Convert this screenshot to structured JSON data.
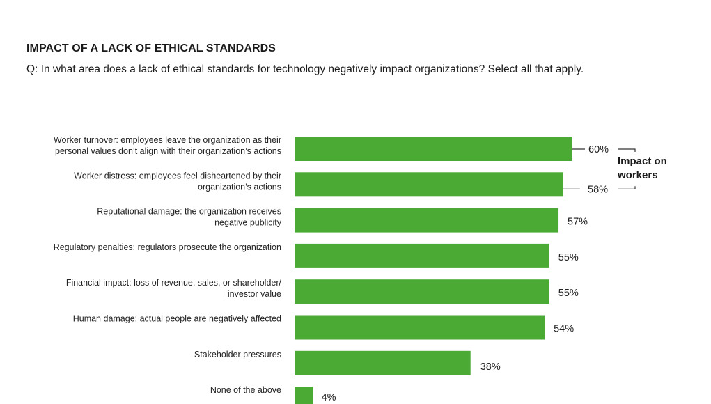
{
  "header": {
    "title": "IMPACT OF A LACK OF ETHICAL STANDARDS",
    "question": "Q: In what area does a lack of ethical standards for technology negatively impact organizations? Select all that apply."
  },
  "chart_data": {
    "type": "bar",
    "orientation": "horizontal",
    "categories": [
      [
        "Worker turnover: employees leave the organization as their",
        "personal values don’t align with their organization’s actions"
      ],
      [
        "Worker distress: employees feel disheartened by their",
        "organization’s actions"
      ],
      [
        "Reputational damage: the organization receives",
        "negative publicity"
      ],
      [
        "Regulatory penalties: regulators prosecute the organization"
      ],
      [
        "Financial impact: loss of revenue, sales, or shareholder/",
        "investor value"
      ],
      [
        "Human damage: actual people are negatively affected"
      ],
      [
        "Stakeholder pressures"
      ],
      [
        "None of the above"
      ]
    ],
    "values": [
      60,
      58,
      57,
      55,
      55,
      54,
      38,
      4
    ],
    "value_labels": [
      "60%",
      "58%",
      "57%",
      "55%",
      "55%",
      "54%",
      "38%",
      "4%"
    ],
    "bar_color": "#4aaa34",
    "annotation": {
      "label_lines": [
        "Impact on",
        "workers"
      ],
      "applies_to": [
        0,
        1
      ]
    },
    "xlim": [
      0,
      100
    ],
    "grid": false,
    "legend": "none"
  }
}
